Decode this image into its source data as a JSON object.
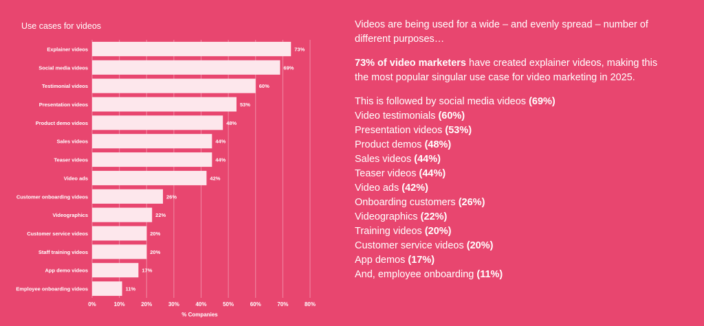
{
  "chart_data": {
    "type": "bar",
    "orientation": "horizontal",
    "title": "Use cases for videos",
    "xlabel": "% Companies",
    "ylabel": "",
    "xlim": [
      0,
      80
    ],
    "xticks": [
      "0%",
      "10%",
      "20%",
      "30%",
      "40%",
      "50%",
      "60%",
      "70%",
      "80%"
    ],
    "grid": true,
    "categories": [
      "Explainer videos",
      "Social media videos",
      "Testimonial videos",
      "Presentation videos",
      "Product demo videos",
      "Sales videos",
      "Teaser videos",
      "Video ads",
      "Customer onboarding videos",
      "Videographics",
      "Customer service videos",
      "Staff training videos",
      "App demo videos",
      "Employee onboarding videos"
    ],
    "values": [
      73,
      69,
      60,
      53,
      48,
      44,
      44,
      42,
      26,
      22,
      20,
      20,
      17,
      11
    ],
    "value_labels": [
      "73%",
      "69%",
      "60%",
      "53%",
      "48%",
      "44%",
      "44%",
      "42%",
      "26%",
      "22%",
      "20%",
      "20%",
      "17%",
      "11%"
    ],
    "colors": {
      "bar": "#fde7ec",
      "background": "#e8466f",
      "grid": "#f08ba5"
    }
  },
  "panel": {
    "intro": "Videos are being used for a wide – and evenly spread – number of different purposes…",
    "highlight_bold": "73% of video marketers",
    "highlight_rest": " have created explainer videos, making this the most popular singular use case for video marketing in 2025.",
    "list": [
      {
        "text": "This is followed by social media videos ",
        "pct": "(69%)"
      },
      {
        "text": "Video testimonials ",
        "pct": "(60%)"
      },
      {
        "text": "Presentation videos ",
        "pct": "(53%)"
      },
      {
        "text": "Product demos ",
        "pct": "(48%)"
      },
      {
        "text": "Sales videos ",
        "pct": "(44%)"
      },
      {
        "text": "Teaser videos ",
        "pct": "(44%)"
      },
      {
        "text": "Video ads ",
        "pct": "(42%)"
      },
      {
        "text": "Onboarding customers ",
        "pct": "(26%)"
      },
      {
        "text": "Videographics ",
        "pct": "(22%)"
      },
      {
        "text": "Training videos ",
        "pct": "(20%)"
      },
      {
        "text": "Customer service videos ",
        "pct": "(20%)"
      },
      {
        "text": "App demos ",
        "pct": "(17%)"
      },
      {
        "text": "And, employee onboarding ",
        "pct": "(11%)"
      }
    ]
  }
}
